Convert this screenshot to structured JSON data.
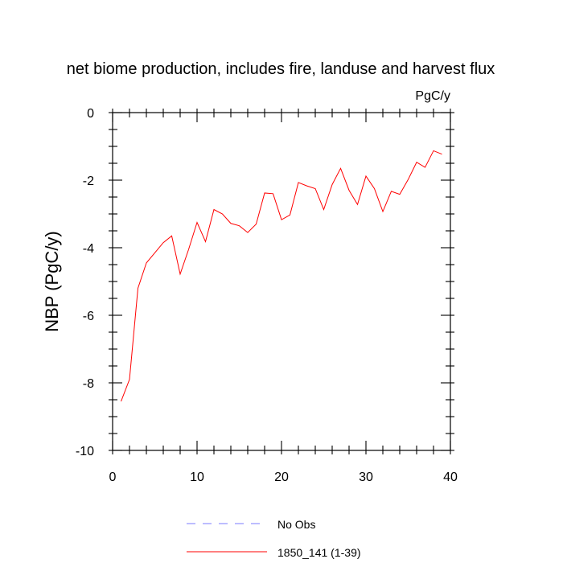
{
  "chart_data": {
    "type": "line",
    "title": "net biome production, includes fire, landuse and harvest flux",
    "units_label": "PgC/y",
    "ylabel": "NBP  (PgC/y)",
    "xlabel": "",
    "xlim": [
      0,
      40
    ],
    "ylim": [
      -10,
      0
    ],
    "x_ticks": [
      0,
      10,
      20,
      30,
      40
    ],
    "y_ticks": [
      0,
      -2,
      -4,
      -6,
      -8,
      -10
    ],
    "x_tick_labels": [
      "0",
      "10",
      "20",
      "30",
      "40"
    ],
    "y_tick_labels": [
      "0",
      "-2",
      "-4",
      "-6",
      "-8",
      "-10"
    ],
    "grid": false,
    "legend_position": "bottom",
    "legend": [
      {
        "label": "No Obs",
        "color": "#7b7bff",
        "dashed": true
      },
      {
        "label": "1850_141 (1-39)",
        "color": "#ff0000",
        "dashed": false
      }
    ],
    "series": [
      {
        "name": "1850_141 (1-39)",
        "color": "#ff0000",
        "x": [
          1,
          2,
          3,
          4,
          5,
          6,
          7,
          8,
          9,
          10,
          11,
          12,
          13,
          14,
          15,
          16,
          17,
          18,
          19,
          20,
          21,
          22,
          23,
          24,
          25,
          26,
          27,
          28,
          29,
          30,
          31,
          32,
          33,
          34,
          35,
          36,
          37,
          38,
          39
        ],
        "values": [
          -8.55,
          -7.9,
          -5.2,
          -4.45,
          -4.15,
          -3.85,
          -3.65,
          -4.78,
          -4.05,
          -3.25,
          -3.82,
          -2.87,
          -3.0,
          -3.28,
          -3.35,
          -3.55,
          -3.3,
          -2.38,
          -2.4,
          -3.17,
          -3.03,
          -2.07,
          -2.17,
          -2.25,
          -2.87,
          -2.13,
          -1.65,
          -2.3,
          -2.72,
          -1.88,
          -2.25,
          -2.93,
          -2.33,
          -2.42,
          -1.98,
          -1.47,
          -1.62,
          -1.13,
          -1.23
        ]
      }
    ]
  }
}
